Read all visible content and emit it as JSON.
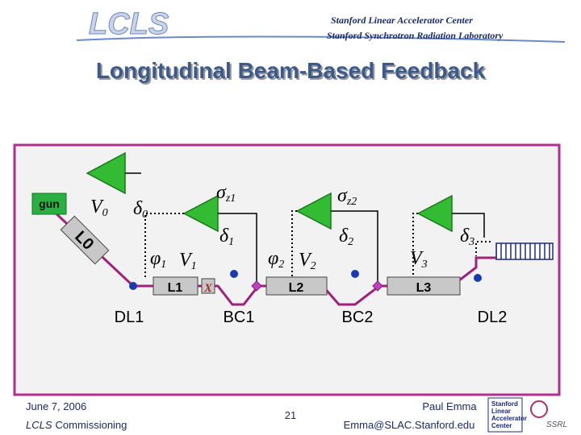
{
  "header": {
    "logo": "LCLS",
    "lab1": "Stanford Linear Accelerator Center",
    "lab2": "Stanford Synchrotron Radiation Laboratory"
  },
  "title": "Longitudinal Beam-Based Feedback",
  "diagram": {
    "gun": "gun",
    "linacs": [
      "L0",
      "L1",
      "X",
      "L2",
      "L3"
    ],
    "symbols": [
      {
        "sym": "V",
        "sub": "0"
      },
      {
        "sym": "δ",
        "sub": "0"
      },
      {
        "sym": "σ",
        "sub": "z1"
      },
      {
        "sym": "σ",
        "sub": "z2"
      },
      {
        "sym": "φ",
        "sub": "1"
      },
      {
        "sym": "V",
        "sub": "1"
      },
      {
        "sym": "δ",
        "sub": "1"
      },
      {
        "sym": "φ",
        "sub": "2"
      },
      {
        "sym": "V",
        "sub": "2"
      },
      {
        "sym": "δ",
        "sub": "2"
      },
      {
        "sym": "V",
        "sub": "3"
      },
      {
        "sym": "δ",
        "sub": "3"
      }
    ],
    "sections": [
      "DL1",
      "BC1",
      "BC2",
      "DL2"
    ]
  },
  "footer": {
    "date": "June 7, 2006",
    "project": "LCLS",
    "project_rest": "Commissioning",
    "page": "21",
    "author": "Paul Emma",
    "email": "Emma@SLAC.Stanford.edu",
    "logo_lines": [
      "Stanford",
      "Linear",
      "Accelerator",
      "Center"
    ],
    "ssrl": "SSRL"
  }
}
